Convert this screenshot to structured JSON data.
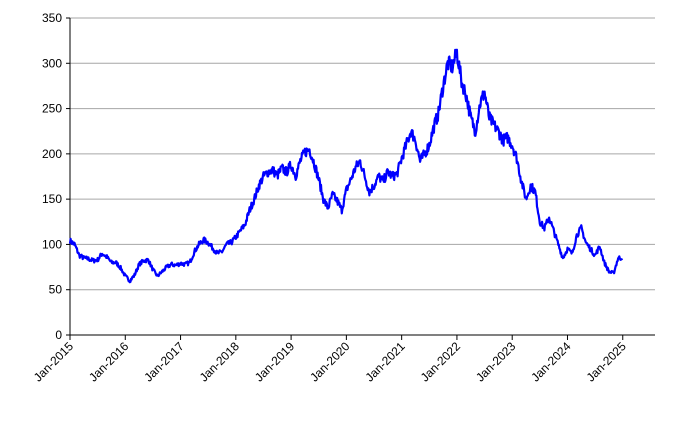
{
  "chart_data": {
    "type": "line",
    "title": "",
    "xlabel": "",
    "ylabel": "",
    "ylim": [
      0,
      350
    ],
    "yticks": [
      0,
      50,
      100,
      150,
      200,
      250,
      300,
      350
    ],
    "xlim": [
      "2015-01",
      "2025-08"
    ],
    "xticks": [
      "Jan-2015",
      "Jan-2016",
      "Jan-2017",
      "Jan-2018",
      "Jan-2019",
      "Jan-2020",
      "Jan-2021",
      "Jan-2022",
      "Jan-2023",
      "Jan-2024",
      "Jan-2025"
    ],
    "grid": "horizontal",
    "legend": "none",
    "series": [
      {
        "color": "#0000ff",
        "points": [
          [
            "2015-01",
            104
          ],
          [
            "2015-02",
            100
          ],
          [
            "2015-03",
            88
          ],
          [
            "2015-04",
            85
          ],
          [
            "2015-05",
            84
          ],
          [
            "2015-06",
            82
          ],
          [
            "2015-07",
            83
          ],
          [
            "2015-08",
            90
          ],
          [
            "2015-09",
            86
          ],
          [
            "2015-10",
            80
          ],
          [
            "2015-11",
            80
          ],
          [
            "2015-12",
            74
          ],
          [
            "2016-01",
            65
          ],
          [
            "2016-02",
            60
          ],
          [
            "2016-03",
            66
          ],
          [
            "2016-04",
            78
          ],
          [
            "2016-05",
            82
          ],
          [
            "2016-06",
            83
          ],
          [
            "2016-07",
            72
          ],
          [
            "2016-08",
            65
          ],
          [
            "2016-09",
            70
          ],
          [
            "2016-10",
            75
          ],
          [
            "2016-11",
            78
          ],
          [
            "2016-12",
            77
          ],
          [
            "2017-01",
            79
          ],
          [
            "2017-02",
            78
          ],
          [
            "2017-03",
            80
          ],
          [
            "2017-04",
            92
          ],
          [
            "2017-05",
            100
          ],
          [
            "2017-06",
            105
          ],
          [
            "2017-07",
            102
          ],
          [
            "2017-08",
            96
          ],
          [
            "2017-09",
            90
          ],
          [
            "2017-10",
            92
          ],
          [
            "2017-11",
            100
          ],
          [
            "2017-12",
            102
          ],
          [
            "2018-01",
            108
          ],
          [
            "2018-02",
            115
          ],
          [
            "2018-03",
            122
          ],
          [
            "2018-04",
            138
          ],
          [
            "2018-05",
            150
          ],
          [
            "2018-06",
            165
          ],
          [
            "2018-07",
            175
          ],
          [
            "2018-08",
            180
          ],
          [
            "2018-09",
            182
          ],
          [
            "2018-10",
            176
          ],
          [
            "2018-11",
            184
          ],
          [
            "2018-12",
            180
          ],
          [
            "2019-01",
            188
          ],
          [
            "2019-02",
            176
          ],
          [
            "2019-03",
            192
          ],
          [
            "2019-04",
            202
          ],
          [
            "2019-05",
            205
          ],
          [
            "2019-06",
            190
          ],
          [
            "2019-07",
            172
          ],
          [
            "2019-08",
            150
          ],
          [
            "2019-09",
            140
          ],
          [
            "2019-10",
            155
          ],
          [
            "2019-11",
            148
          ],
          [
            "2019-12",
            138
          ],
          [
            "2020-01",
            160
          ],
          [
            "2020-02",
            172
          ],
          [
            "2020-03",
            185
          ],
          [
            "2020-04",
            192
          ],
          [
            "2020-05",
            175
          ],
          [
            "2020-06",
            158
          ],
          [
            "2020-07",
            165
          ],
          [
            "2020-08",
            175
          ],
          [
            "2020-09",
            170
          ],
          [
            "2020-10",
            180
          ],
          [
            "2020-11",
            175
          ],
          [
            "2020-12",
            178
          ],
          [
            "2021-01",
            195
          ],
          [
            "2021-02",
            210
          ],
          [
            "2021-03",
            225
          ],
          [
            "2021-04",
            215
          ],
          [
            "2021-05",
            192
          ],
          [
            "2021-06",
            200
          ],
          [
            "2021-07",
            210
          ],
          [
            "2021-08",
            230
          ],
          [
            "2021-09",
            245
          ],
          [
            "2021-10",
            275
          ],
          [
            "2021-11",
            300
          ],
          [
            "2021-12",
            296
          ],
          [
            "2022-01",
            312
          ],
          [
            "2022-02",
            280
          ],
          [
            "2022-03",
            265
          ],
          [
            "2022-04",
            240
          ],
          [
            "2022-05",
            225
          ],
          [
            "2022-06",
            255
          ],
          [
            "2022-07",
            268
          ],
          [
            "2022-08",
            240
          ],
          [
            "2022-09",
            232
          ],
          [
            "2022-10",
            225
          ],
          [
            "2022-11",
            215
          ],
          [
            "2022-12",
            218
          ],
          [
            "2023-01",
            210
          ],
          [
            "2023-02",
            195
          ],
          [
            "2023-03",
            170
          ],
          [
            "2023-04",
            150
          ],
          [
            "2023-05",
            165
          ],
          [
            "2023-06",
            158
          ],
          [
            "2023-07",
            125
          ],
          [
            "2023-08",
            118
          ],
          [
            "2023-09",
            130
          ],
          [
            "2023-10",
            115
          ],
          [
            "2023-11",
            100
          ],
          [
            "2023-12",
            85
          ],
          [
            "2024-01",
            95
          ],
          [
            "2024-02",
            90
          ],
          [
            "2024-03",
            110
          ],
          [
            "2024-04",
            118
          ],
          [
            "2024-05",
            102
          ],
          [
            "2024-06",
            95
          ],
          [
            "2024-07",
            88
          ],
          [
            "2024-08",
            98
          ],
          [
            "2024-09",
            80
          ],
          [
            "2024-10",
            70
          ],
          [
            "2024-11",
            68
          ],
          [
            "2024-12",
            85
          ]
        ]
      }
    ]
  }
}
